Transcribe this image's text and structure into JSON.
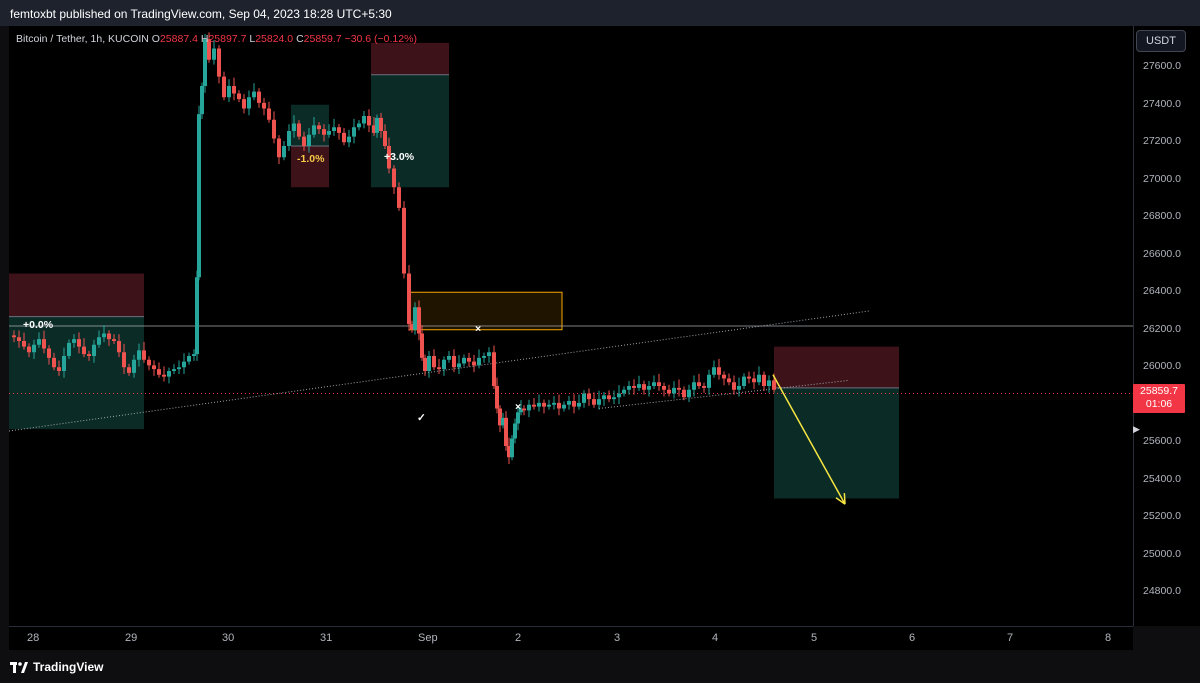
{
  "header": {
    "publisher_line": "femtoxbt published on TradingView.com, Sep 04, 2023 18:28 UTC+5:30"
  },
  "symbol": {
    "name": "Bitcoin / Tether, 1h, KUCOIN",
    "open_label": "O",
    "open": "25887.4",
    "high_label": "H",
    "high": "25897.7",
    "low_label": "L",
    "low": "25824.0",
    "close_label": "C",
    "close": "25859.7",
    "change": "−30.6 (−0.12%)"
  },
  "currency": "USDT",
  "last_price": {
    "price": "25859.7",
    "countdown": "01:06"
  },
  "footer": {
    "brand": "TradingView"
  },
  "colors": {
    "up": "#26a69a",
    "down": "#ef5350",
    "stop_zone": "#3d1218",
    "target_zone": "#0b2b26",
    "orange_box": "#f7a600",
    "arrow": "#f5e642"
  },
  "annotations": {
    "pct_1": "-1.0%",
    "pct_2": "+3.0%",
    "pct_3": "+0.0%",
    "x_mark_1": "×",
    "x_mark_2": "×",
    "check_mark": "✓"
  },
  "chart_data": {
    "type": "candlestick",
    "title": "Bitcoin / Tether, 1h, KUCOIN",
    "ylim": [
      24620,
      27820
    ],
    "y_ticks": [
      "27600.0",
      "27400.0",
      "27200.0",
      "27000.0",
      "26800.0",
      "26600.0",
      "26400.0",
      "26200.0",
      "26000.0",
      "25800.0",
      "25600.0",
      "25400.0",
      "25200.0",
      "25000.0",
      "24800.0"
    ],
    "x_ticks": [
      "28",
      "29",
      "30",
      "31",
      "Sep",
      "2",
      "3",
      "4",
      "5",
      "6",
      "7",
      "8"
    ],
    "horizontal_line_price": 26220,
    "last_close": 25859.7,
    "grid": false,
    "price_path": [
      [
        0,
        26170
      ],
      [
        5,
        26160
      ],
      [
        10,
        26140
      ],
      [
        15,
        26110
      ],
      [
        20,
        26080
      ],
      [
        25,
        26120
      ],
      [
        30,
        26150
      ],
      [
        35,
        26100
      ],
      [
        40,
        26050
      ],
      [
        45,
        26000
      ],
      [
        50,
        25980
      ],
      [
        55,
        26060
      ],
      [
        60,
        26130
      ],
      [
        65,
        26150
      ],
      [
        70,
        26110
      ],
      [
        75,
        26070
      ],
      [
        80,
        26060
      ],
      [
        85,
        26120
      ],
      [
        90,
        26160
      ],
      [
        95,
        26180
      ],
      [
        100,
        26150
      ],
      [
        105,
        26140
      ],
      [
        110,
        26080
      ],
      [
        115,
        26000
      ],
      [
        120,
        25970
      ],
      [
        125,
        26040
      ],
      [
        130,
        26090
      ],
      [
        135,
        26040
      ],
      [
        140,
        26010
      ],
      [
        145,
        25990
      ],
      [
        150,
        25960
      ],
      [
        155,
        25950
      ],
      [
        160,
        25980
      ],
      [
        165,
        25990
      ],
      [
        170,
        26000
      ],
      [
        175,
        26030
      ],
      [
        180,
        26060
      ],
      [
        185,
        26070
      ],
      [
        188,
        26480
      ],
      [
        190,
        27350
      ],
      [
        193,
        27500
      ],
      [
        196,
        27750
      ],
      [
        200,
        27640
      ],
      [
        205,
        27700
      ],
      [
        210,
        27550
      ],
      [
        215,
        27440
      ],
      [
        220,
        27500
      ],
      [
        225,
        27460
      ],
      [
        230,
        27430
      ],
      [
        235,
        27380
      ],
      [
        240,
        27440
      ],
      [
        245,
        27470
      ],
      [
        250,
        27410
      ],
      [
        255,
        27380
      ],
      [
        260,
        27320
      ],
      [
        265,
        27220
      ],
      [
        270,
        27120
      ],
      [
        275,
        27180
      ],
      [
        280,
        27260
      ],
      [
        285,
        27300
      ],
      [
        290,
        27230
      ],
      [
        295,
        27180
      ],
      [
        300,
        27240
      ],
      [
        305,
        27290
      ],
      [
        310,
        27270
      ],
      [
        315,
        27240
      ],
      [
        320,
        27260
      ],
      [
        325,
        27280
      ],
      [
        330,
        27250
      ],
      [
        335,
        27200
      ],
      [
        340,
        27230
      ],
      [
        345,
        27280
      ],
      [
        350,
        27300
      ],
      [
        355,
        27340
      ],
      [
        360,
        27290
      ],
      [
        365,
        27250
      ],
      [
        368,
        27330
      ],
      [
        372,
        27260
      ],
      [
        376,
        27180
      ],
      [
        380,
        27060
      ],
      [
        385,
        26960
      ],
      [
        390,
        26850
      ],
      [
        395,
        26500
      ],
      [
        400,
        26230
      ],
      [
        403,
        26200
      ],
      [
        406,
        26320
      ],
      [
        410,
        26180
      ],
      [
        413,
        26050
      ],
      [
        416,
        25980
      ],
      [
        420,
        26060
      ],
      [
        425,
        26000
      ],
      [
        430,
        25990
      ],
      [
        435,
        26040
      ],
      [
        440,
        26060
      ],
      [
        445,
        26000
      ],
      [
        450,
        26020
      ],
      [
        455,
        26050
      ],
      [
        460,
        26030
      ],
      [
        465,
        26010
      ],
      [
        470,
        26050
      ],
      [
        475,
        26060
      ],
      [
        480,
        26080
      ],
      [
        485,
        25900
      ],
      [
        488,
        25780
      ],
      [
        491,
        25690
      ],
      [
        494,
        25730
      ],
      [
        497,
        25580
      ],
      [
        500,
        25520
      ],
      [
        503,
        25620
      ],
      [
        506,
        25700
      ],
      [
        509,
        25760
      ],
      [
        512,
        25780
      ],
      [
        515,
        25770
      ],
      [
        520,
        25800
      ],
      [
        525,
        25790
      ],
      [
        530,
        25810
      ],
      [
        535,
        25790
      ],
      [
        540,
        25800
      ],
      [
        545,
        25810
      ],
      [
        550,
        25780
      ],
      [
        555,
        25800
      ],
      [
        560,
        25820
      ],
      [
        565,
        25790
      ],
      [
        570,
        25810
      ],
      [
        575,
        25860
      ],
      [
        580,
        25830
      ],
      [
        585,
        25800
      ],
      [
        590,
        25830
      ],
      [
        595,
        25850
      ],
      [
        600,
        25830
      ],
      [
        605,
        25840
      ],
      [
        610,
        25860
      ],
      [
        615,
        25880
      ],
      [
        620,
        25900
      ],
      [
        625,
        25890
      ],
      [
        630,
        25910
      ],
      [
        635,
        25880
      ],
      [
        640,
        25900
      ],
      [
        645,
        25920
      ],
      [
        650,
        25900
      ],
      [
        655,
        25880
      ],
      [
        660,
        25860
      ],
      [
        665,
        25890
      ],
      [
        670,
        25880
      ],
      [
        675,
        25840
      ],
      [
        680,
        25880
      ],
      [
        685,
        25920
      ],
      [
        690,
        25900
      ],
      [
        695,
        25890
      ],
      [
        700,
        25960
      ],
      [
        705,
        26000
      ],
      [
        710,
        25960
      ],
      [
        715,
        25940
      ],
      [
        720,
        25920
      ],
      [
        725,
        25880
      ],
      [
        730,
        25900
      ],
      [
        735,
        25950
      ],
      [
        740,
        25940
      ],
      [
        745,
        25920
      ],
      [
        750,
        25960
      ],
      [
        755,
        25900
      ],
      [
        760,
        25930
      ],
      [
        765,
        25880
      ]
    ],
    "position_tools": [
      {
        "name": "short-left",
        "x_from": 0,
        "x_to": 135,
        "entry": 26270,
        "stop": 26500,
        "target": 25670
      },
      {
        "name": "short-mid1",
        "x_from": 282,
        "x_to": 320,
        "entry": 27180,
        "stop": 26960,
        "target": 27400
      },
      {
        "name": "long-mid2",
        "x_from": 362,
        "x_to": 440,
        "entry": 27560,
        "stop": 27730,
        "target": 26960
      },
      {
        "name": "short-right",
        "x_from": 765,
        "x_to": 890,
        "entry": 25890,
        "stop": 26110,
        "target": 25300
      }
    ],
    "orange_zone": {
      "x_from": 400,
      "x_to": 553,
      "high": 26400,
      "low": 26200
    },
    "trendlines": [
      {
        "from": [
          0,
          25660
        ],
        "to": [
          860,
          26300
        ],
        "style": "dotted"
      },
      {
        "from": [
          590,
          25780
        ],
        "to": [
          840,
          25930
        ],
        "style": "dotted"
      }
    ],
    "projection_arrow": {
      "from": [
        764,
        25960
      ],
      "to": [
        836,
        25270
      ]
    }
  }
}
